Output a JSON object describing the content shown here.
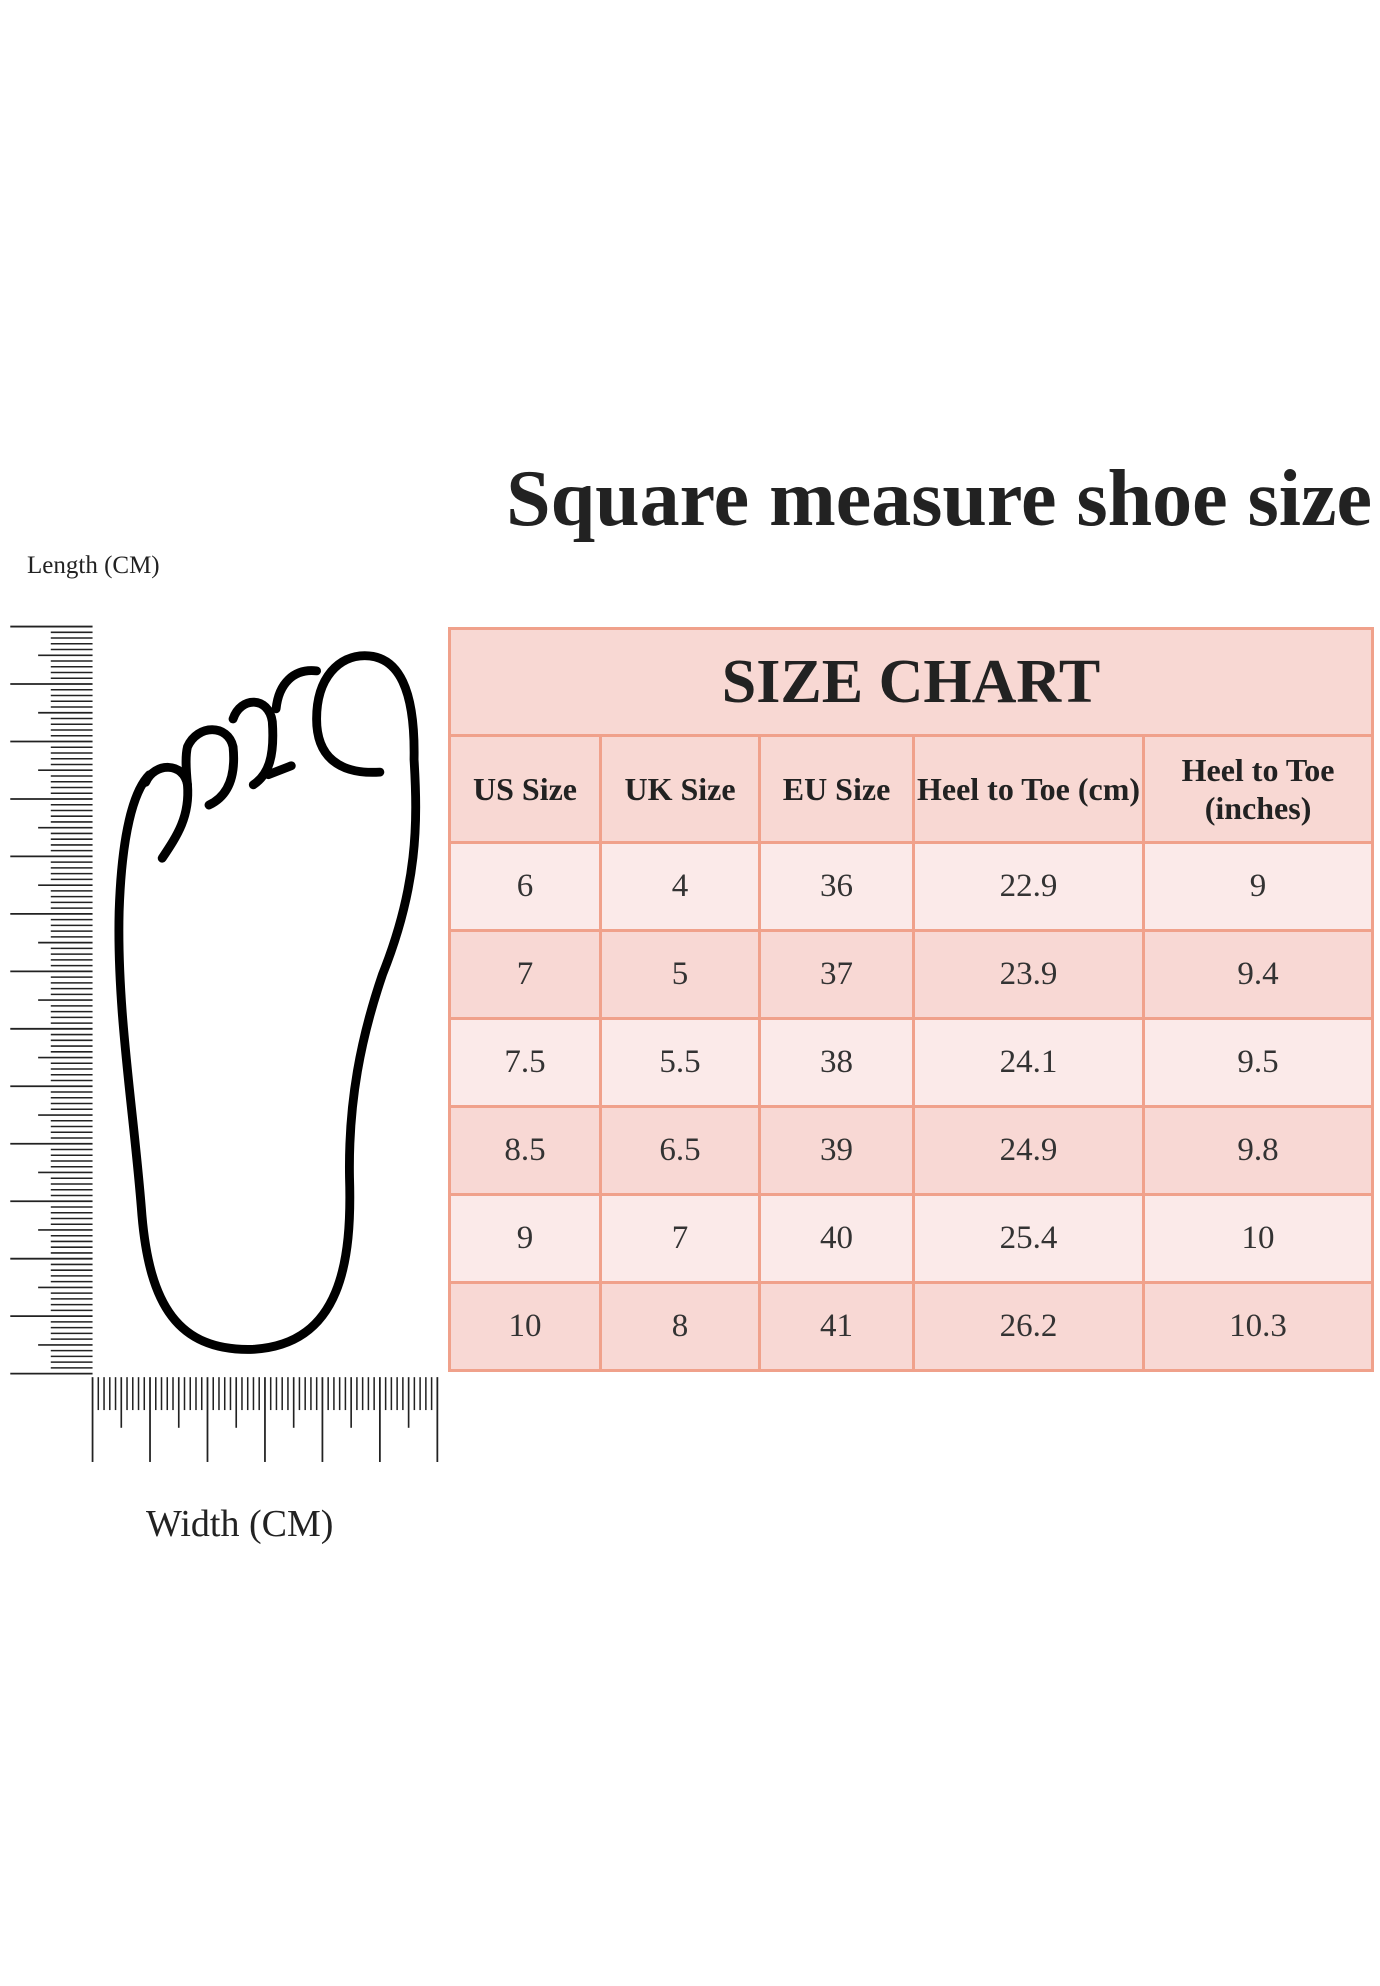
{
  "title": "Square measure shoe size",
  "ruler": {
    "length_label": "Length (CM)",
    "width_label": "Width (CM)"
  },
  "table": {
    "title": "SIZE CHART",
    "headers": [
      "US Size",
      "UK Size",
      "EU Size",
      "Heel to Toe (cm)",
      "Heel to Toe (inches)"
    ],
    "rows": [
      [
        "6",
        "4",
        "36",
        "22.9",
        "9"
      ],
      [
        "7",
        "5",
        "37",
        "23.9",
        "9.4"
      ],
      [
        "7.5",
        "5.5",
        "38",
        "24.1",
        "9.5"
      ],
      [
        "8.5",
        "6.5",
        "39",
        "24.9",
        "9.8"
      ],
      [
        "9",
        "7",
        "40",
        "25.4",
        "10"
      ],
      [
        "10",
        "8",
        "41",
        "26.2",
        "10.3"
      ]
    ]
  },
  "colors": {
    "header_bg": "#f8d8d3",
    "border": "#f0a18b",
    "row_light": "#fbeae9",
    "row_dark": "#f8d8d4"
  }
}
